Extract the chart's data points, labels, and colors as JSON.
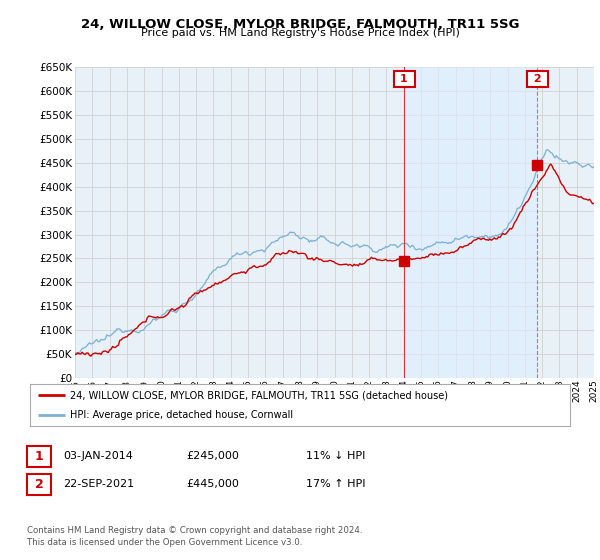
{
  "title": "24, WILLOW CLOSE, MYLOR BRIDGE, FALMOUTH, TR11 5SG",
  "subtitle": "Price paid vs. HM Land Registry's House Price Index (HPI)",
  "legend_line1": "24, WILLOW CLOSE, MYLOR BRIDGE, FALMOUTH, TR11 5SG (detached house)",
  "legend_line2": "HPI: Average price, detached house, Cornwall",
  "annotation1_date": "03-JAN-2014",
  "annotation1_price": "£245,000",
  "annotation1_hpi": "11% ↓ HPI",
  "annotation2_date": "22-SEP-2021",
  "annotation2_price": "£445,000",
  "annotation2_hpi": "17% ↑ HPI",
  "footer": "Contains HM Land Registry data © Crown copyright and database right 2024.\nThis data is licensed under the Open Government Licence v3.0.",
  "price_color": "#cc0000",
  "hpi_color": "#7ab0d4",
  "shade_color": "#ddeeff",
  "grid_color": "#cccccc",
  "background_color": "#ffffff",
  "plot_bg_color": "#e8f0f8",
  "ylim": [
    0,
    650000
  ],
  "yticks": [
    0,
    50000,
    100000,
    150000,
    200000,
    250000,
    300000,
    350000,
    400000,
    450000,
    500000,
    550000,
    600000,
    650000
  ],
  "sale1_year": 2014.02,
  "sale1_price": 245000,
  "sale2_year": 2021.73,
  "sale2_price": 445000,
  "vline_color": "#dd3333",
  "annot_box_color": "#cc0000"
}
